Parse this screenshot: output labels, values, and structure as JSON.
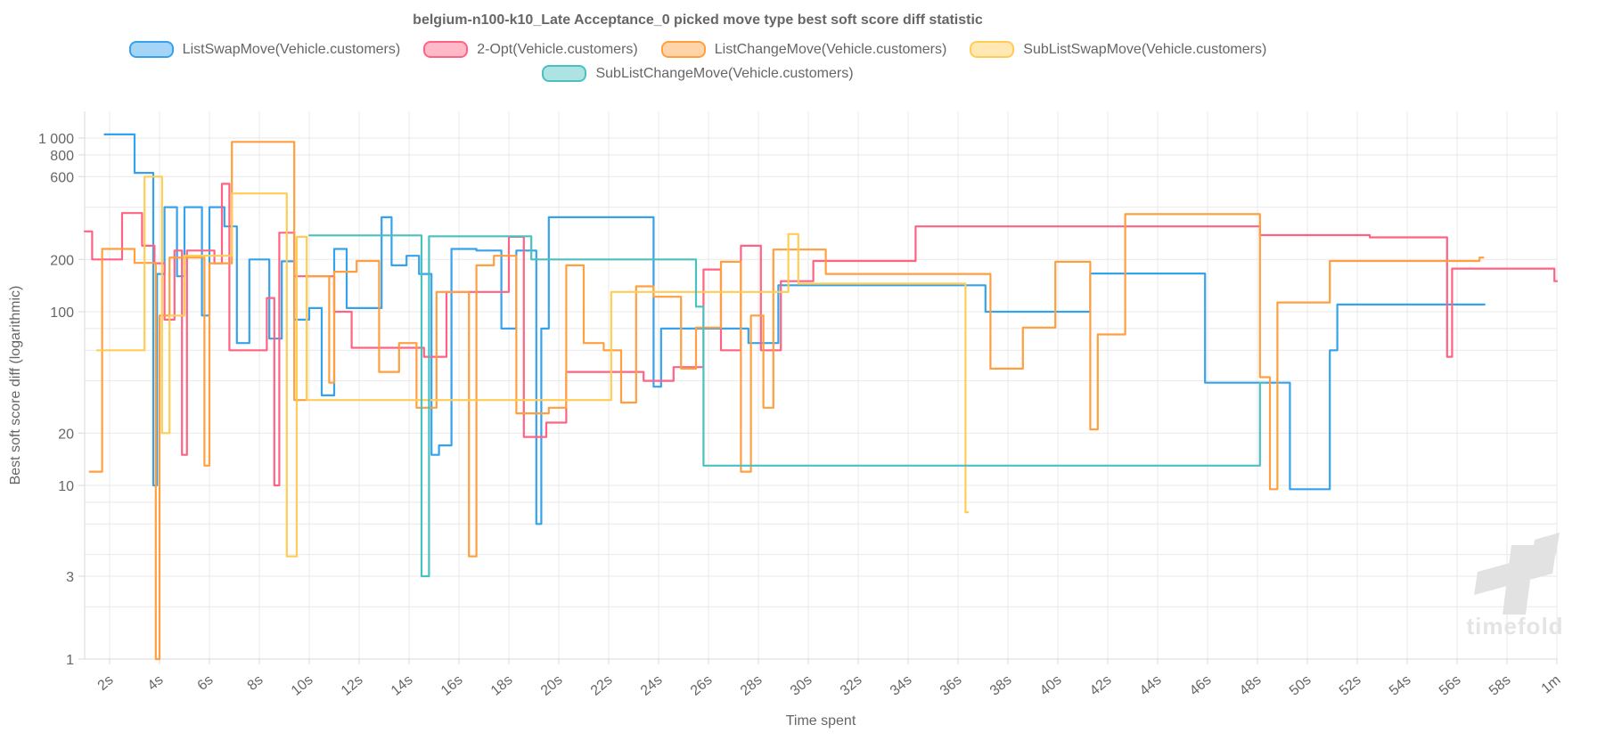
{
  "title": "belgium-n100-k10_Late Acceptance_0 picked move type best soft score diff statistic",
  "watermark": "timefold",
  "colors": {
    "text": "#666666",
    "grid": "#e9e9e9",
    "axis_border": "#d8d8d8",
    "watermark": "#e2e2e2",
    "background": "#ffffff"
  },
  "axes": {
    "x": {
      "title": "Time spent",
      "min_seconds": 1,
      "max_seconds": 60,
      "ticks": [
        {
          "t": 2,
          "label": "2s"
        },
        {
          "t": 4,
          "label": "4s"
        },
        {
          "t": 6,
          "label": "6s"
        },
        {
          "t": 8,
          "label": "8s"
        },
        {
          "t": 10,
          "label": "10s"
        },
        {
          "t": 12,
          "label": "12s"
        },
        {
          "t": 14,
          "label": "14s"
        },
        {
          "t": 16,
          "label": "16s"
        },
        {
          "t": 18,
          "label": "18s"
        },
        {
          "t": 20,
          "label": "20s"
        },
        {
          "t": 22,
          "label": "22s"
        },
        {
          "t": 24,
          "label": "24s"
        },
        {
          "t": 26,
          "label": "26s"
        },
        {
          "t": 28,
          "label": "28s"
        },
        {
          "t": 30,
          "label": "30s"
        },
        {
          "t": 32,
          "label": "32s"
        },
        {
          "t": 34,
          "label": "34s"
        },
        {
          "t": 36,
          "label": "36s"
        },
        {
          "t": 38,
          "label": "38s"
        },
        {
          "t": 40,
          "label": "40s"
        },
        {
          "t": 42,
          "label": "42s"
        },
        {
          "t": 44,
          "label": "44s"
        },
        {
          "t": 46,
          "label": "46s"
        },
        {
          "t": 48,
          "label": "48s"
        },
        {
          "t": 50,
          "label": "50s"
        },
        {
          "t": 52,
          "label": "52s"
        },
        {
          "t": 54,
          "label": "54s"
        },
        {
          "t": 56,
          "label": "56s"
        },
        {
          "t": 58,
          "label": "58s"
        },
        {
          "t": 60,
          "label": "1m"
        }
      ]
    },
    "y": {
      "title": "Best soft score diff (logarithmic)",
      "scale": "log",
      "min": 1,
      "max": 1430,
      "gridline_values": [
        1,
        2,
        3,
        4,
        6,
        8,
        10,
        20,
        40,
        60,
        80,
        100,
        200,
        400,
        600,
        800,
        1000
      ],
      "labeled_ticks": [
        {
          "v": 1000,
          "label": "1 000"
        },
        {
          "v": 800,
          "label": "800"
        },
        {
          "v": 600,
          "label": "600"
        },
        {
          "v": 200,
          "label": "200"
        },
        {
          "v": 100,
          "label": "100"
        },
        {
          "v": 20,
          "label": "20"
        },
        {
          "v": 10,
          "label": "10"
        },
        {
          "v": 3,
          "label": "3"
        },
        {
          "v": 1,
          "label": "1"
        }
      ]
    }
  },
  "chart_data": {
    "type": "line",
    "step": "after",
    "x_unit": "seconds",
    "legend_rows": [
      [
        0,
        1,
        2,
        3
      ],
      [
        4
      ]
    ],
    "series": [
      {
        "name": "ListSwapMove(Vehicle.customers)",
        "color": "#36A2EB",
        "end_time": 57.1,
        "points": [
          [
            1.8,
            1050
          ],
          [
            3.0,
            630
          ],
          [
            3.75,
            10
          ],
          [
            3.9,
            165
          ],
          [
            4.2,
            400
          ],
          [
            4.7,
            160
          ],
          [
            5.0,
            400
          ],
          [
            5.7,
            95
          ],
          [
            6.0,
            400
          ],
          [
            6.6,
            310
          ],
          [
            7.1,
            66
          ],
          [
            7.6,
            200
          ],
          [
            8.4,
            70
          ],
          [
            8.9,
            195
          ],
          [
            9.4,
            90
          ],
          [
            10.0,
            105
          ],
          [
            10.5,
            33
          ],
          [
            11.0,
            230
          ],
          [
            11.5,
            105
          ],
          [
            12.9,
            350
          ],
          [
            13.3,
            185
          ],
          [
            13.9,
            210
          ],
          [
            14.4,
            165
          ],
          [
            14.9,
            15
          ],
          [
            15.2,
            17
          ],
          [
            15.7,
            230
          ],
          [
            16.7,
            225
          ],
          [
            17.7,
            80
          ],
          [
            18.3,
            225
          ],
          [
            19.1,
            6
          ],
          [
            19.3,
            80
          ],
          [
            19.6,
            350
          ],
          [
            23.8,
            37
          ],
          [
            24.1,
            80
          ],
          [
            27.6,
            66
          ],
          [
            28.8,
            142
          ],
          [
            37.1,
            100
          ],
          [
            41.3,
            166
          ],
          [
            45.9,
            39
          ],
          [
            49.3,
            9.5
          ],
          [
            50.9,
            60
          ],
          [
            51.2,
            110
          ]
        ]
      },
      {
        "name": "2-Opt(Vehicle.customers)",
        "color": "#FF6384",
        "end_time": 60.0,
        "points": [
          [
            1.0,
            290
          ],
          [
            1.3,
            200
          ],
          [
            2.5,
            370
          ],
          [
            3.3,
            240
          ],
          [
            3.8,
            190
          ],
          [
            4.2,
            90
          ],
          [
            4.6,
            225
          ],
          [
            4.9,
            15
          ],
          [
            5.1,
            225
          ],
          [
            6.2,
            190
          ],
          [
            6.5,
            545
          ],
          [
            6.8,
            60
          ],
          [
            8.3,
            120
          ],
          [
            8.6,
            10
          ],
          [
            8.8,
            285
          ],
          [
            9.4,
            160
          ],
          [
            11.0,
            100
          ],
          [
            11.7,
            62
          ],
          [
            14.6,
            55
          ],
          [
            15.5,
            130
          ],
          [
            18.0,
            270
          ],
          [
            18.6,
            19
          ],
          [
            19.5,
            23
          ],
          [
            20.3,
            45
          ],
          [
            23.4,
            40
          ],
          [
            24.6,
            48
          ],
          [
            25.8,
            175
          ],
          [
            26.5,
            60
          ],
          [
            27.3,
            240
          ],
          [
            28.1,
            60
          ],
          [
            28.9,
            150
          ],
          [
            30.2,
            196
          ],
          [
            34.3,
            310
          ],
          [
            48.1,
            276
          ],
          [
            52.5,
            268
          ],
          [
            55.6,
            55
          ],
          [
            55.8,
            177
          ],
          [
            59.9,
            150
          ]
        ]
      },
      {
        "name": "ListChangeMove(Vehicle.customers)",
        "color": "#FF9F40",
        "end_time": 57.05,
        "points": [
          [
            1.2,
            12
          ],
          [
            1.7,
            230
          ],
          [
            3.0,
            191
          ],
          [
            3.85,
            1
          ],
          [
            4.0,
            95
          ],
          [
            4.4,
            205
          ],
          [
            5.8,
            13
          ],
          [
            6.0,
            190
          ],
          [
            6.9,
            950
          ],
          [
            9.4,
            31
          ],
          [
            9.9,
            160
          ],
          [
            10.8,
            39
          ],
          [
            11.0,
            170
          ],
          [
            11.9,
            196
          ],
          [
            12.8,
            45
          ],
          [
            13.6,
            66
          ],
          [
            14.3,
            28
          ],
          [
            15.1,
            130
          ],
          [
            16.4,
            3.9
          ],
          [
            16.7,
            185
          ],
          [
            17.4,
            210
          ],
          [
            18.3,
            26
          ],
          [
            19.6,
            28
          ],
          [
            20.3,
            185
          ],
          [
            21.0,
            66
          ],
          [
            21.8,
            60
          ],
          [
            22.5,
            30
          ],
          [
            23.1,
            140
          ],
          [
            23.8,
            122
          ],
          [
            24.9,
            47
          ],
          [
            25.5,
            81
          ],
          [
            26.5,
            194
          ],
          [
            27.3,
            12
          ],
          [
            27.7,
            95
          ],
          [
            28.2,
            28
          ],
          [
            28.6,
            228
          ],
          [
            30.7,
            165
          ],
          [
            37.3,
            47
          ],
          [
            38.6,
            81
          ],
          [
            39.9,
            194
          ],
          [
            41.3,
            21
          ],
          [
            41.6,
            74
          ],
          [
            42.7,
            365
          ],
          [
            48.1,
            42
          ],
          [
            48.5,
            9.5
          ],
          [
            48.8,
            113
          ],
          [
            50.9,
            196
          ],
          [
            56.9,
            205
          ]
        ]
      },
      {
        "name": "SubListSwapMove(Vehicle.customers)",
        "color": "#FFCD56",
        "end_time": 36.4,
        "points": [
          [
            1.5,
            60
          ],
          [
            3.4,
            600
          ],
          [
            4.1,
            20
          ],
          [
            4.4,
            95
          ],
          [
            5.0,
            210
          ],
          [
            6.9,
            480
          ],
          [
            9.1,
            3.9
          ],
          [
            9.5,
            270
          ],
          [
            9.9,
            31
          ],
          [
            22.1,
            130
          ],
          [
            29.2,
            280
          ],
          [
            29.6,
            145
          ],
          [
            36.3,
            7
          ]
        ]
      },
      {
        "name": "SubListChangeMove(Vehicle.customers)",
        "color": "#4BC0C0",
        "end_time": 48.3,
        "points": [
          [
            10.0,
            275
          ],
          [
            14.5,
            3
          ],
          [
            14.8,
            272
          ],
          [
            18.9,
            200
          ],
          [
            25.5,
            107
          ],
          [
            25.8,
            13
          ],
          [
            48.1,
            39
          ]
        ]
      }
    ]
  }
}
